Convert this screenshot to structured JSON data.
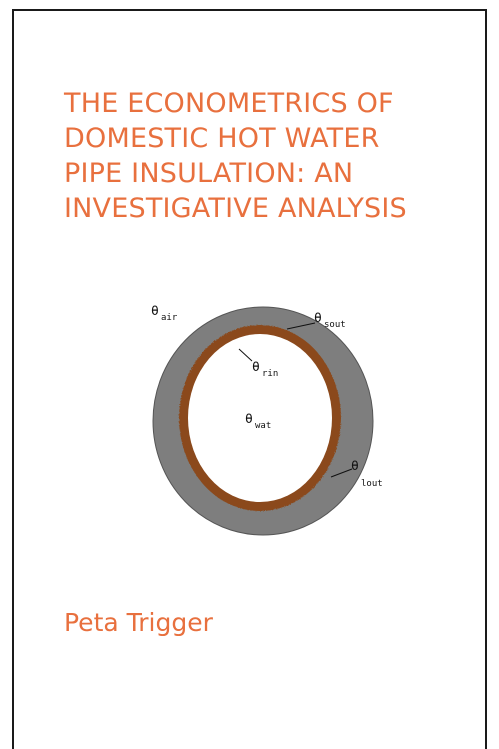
{
  "book": {
    "title_lines": [
      "THE ECONOMETRICS OF",
      "DOMESTIC HOT WATER",
      "PIPE INSULATION: AN",
      "INVESTIGATIVE ANALYSIS"
    ],
    "author": "Peta Trigger"
  },
  "figure": {
    "labels": {
      "theta": "θ",
      "air": "air",
      "sout": "sout",
      "rin": "rin",
      "wat": "wat",
      "lout": "lout"
    }
  },
  "colors": {
    "title": "#e8703e",
    "insulation": "#7e7e7e",
    "pipe": "#8b4a1c",
    "border": "#1a1a1a"
  }
}
